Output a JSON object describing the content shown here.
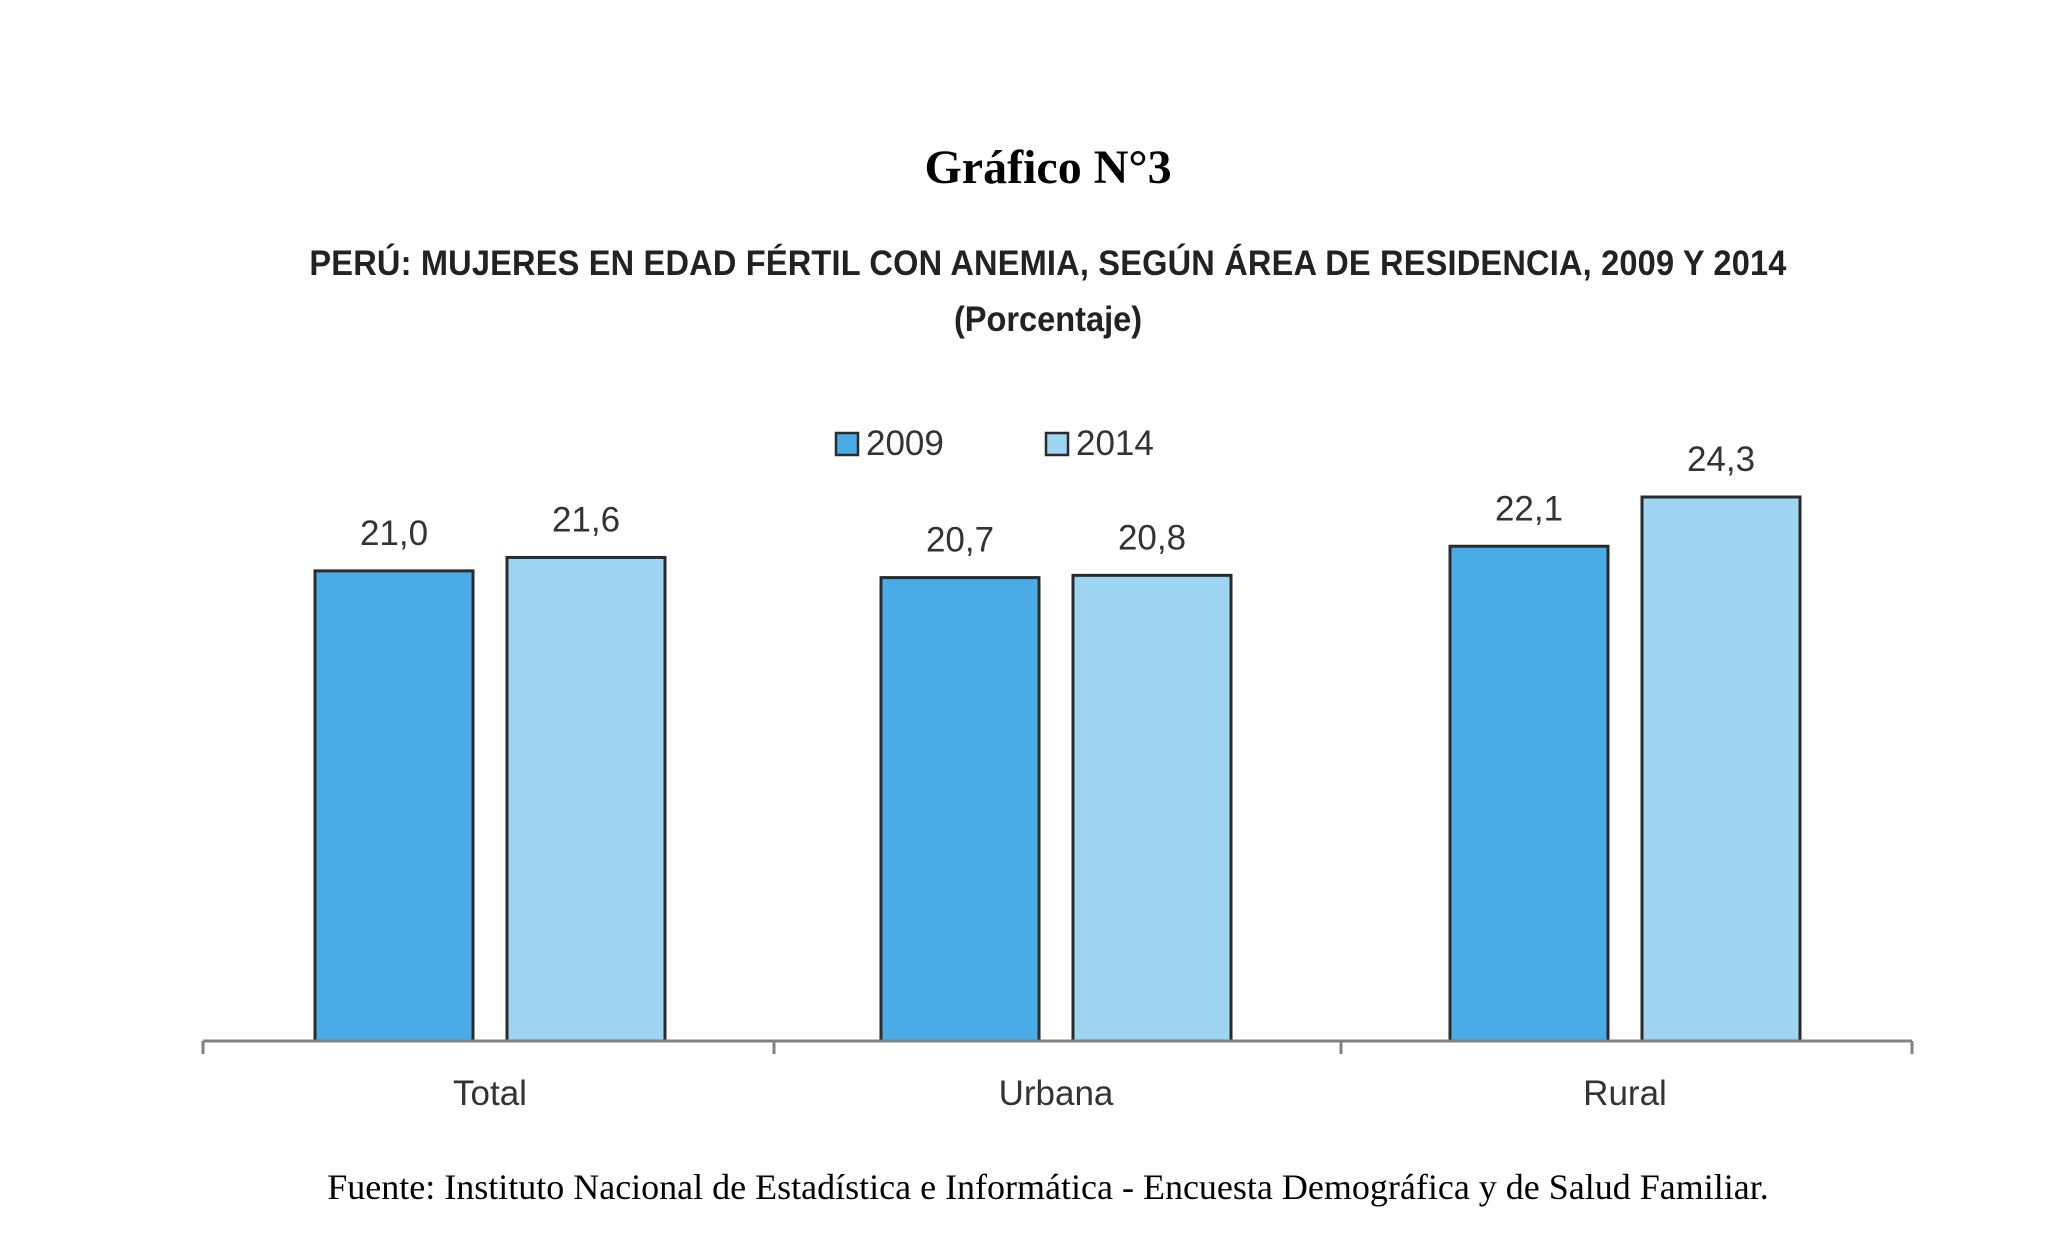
{
  "figure_label": "Gráfico N°3",
  "source_note": "Fuente: Instituto Nacional de Estadística e Informática - Encuesta Demográfica y de Salud Familiar.",
  "chart_data": {
    "type": "bar",
    "title": "PERÚ: MUJERES EN EDAD FÉRTIL CON ANEMIA, SEGÚN ÁREA DE RESIDENCIA,  2009 Y 2014",
    "subtitle": "(Porcentaje)",
    "xlabel": "",
    "ylabel": "",
    "categories": [
      "Total",
      "Urbana",
      "Rural"
    ],
    "series": [
      {
        "name": "2009",
        "values": [
          21.0,
          20.7,
          22.1
        ],
        "labels": [
          "21,0",
          "20,7",
          "22,1"
        ],
        "color": "#4AACE6"
      },
      {
        "name": "2014",
        "values": [
          21.6,
          20.8,
          24.3
        ],
        "labels": [
          "21,6",
          "20,8",
          "24,3"
        ],
        "color": "#9DD5F3"
      }
    ],
    "ylim": [
      0,
      24.3
    ],
    "grid": false,
    "legend_position": "top-center",
    "data_labels": true
  }
}
